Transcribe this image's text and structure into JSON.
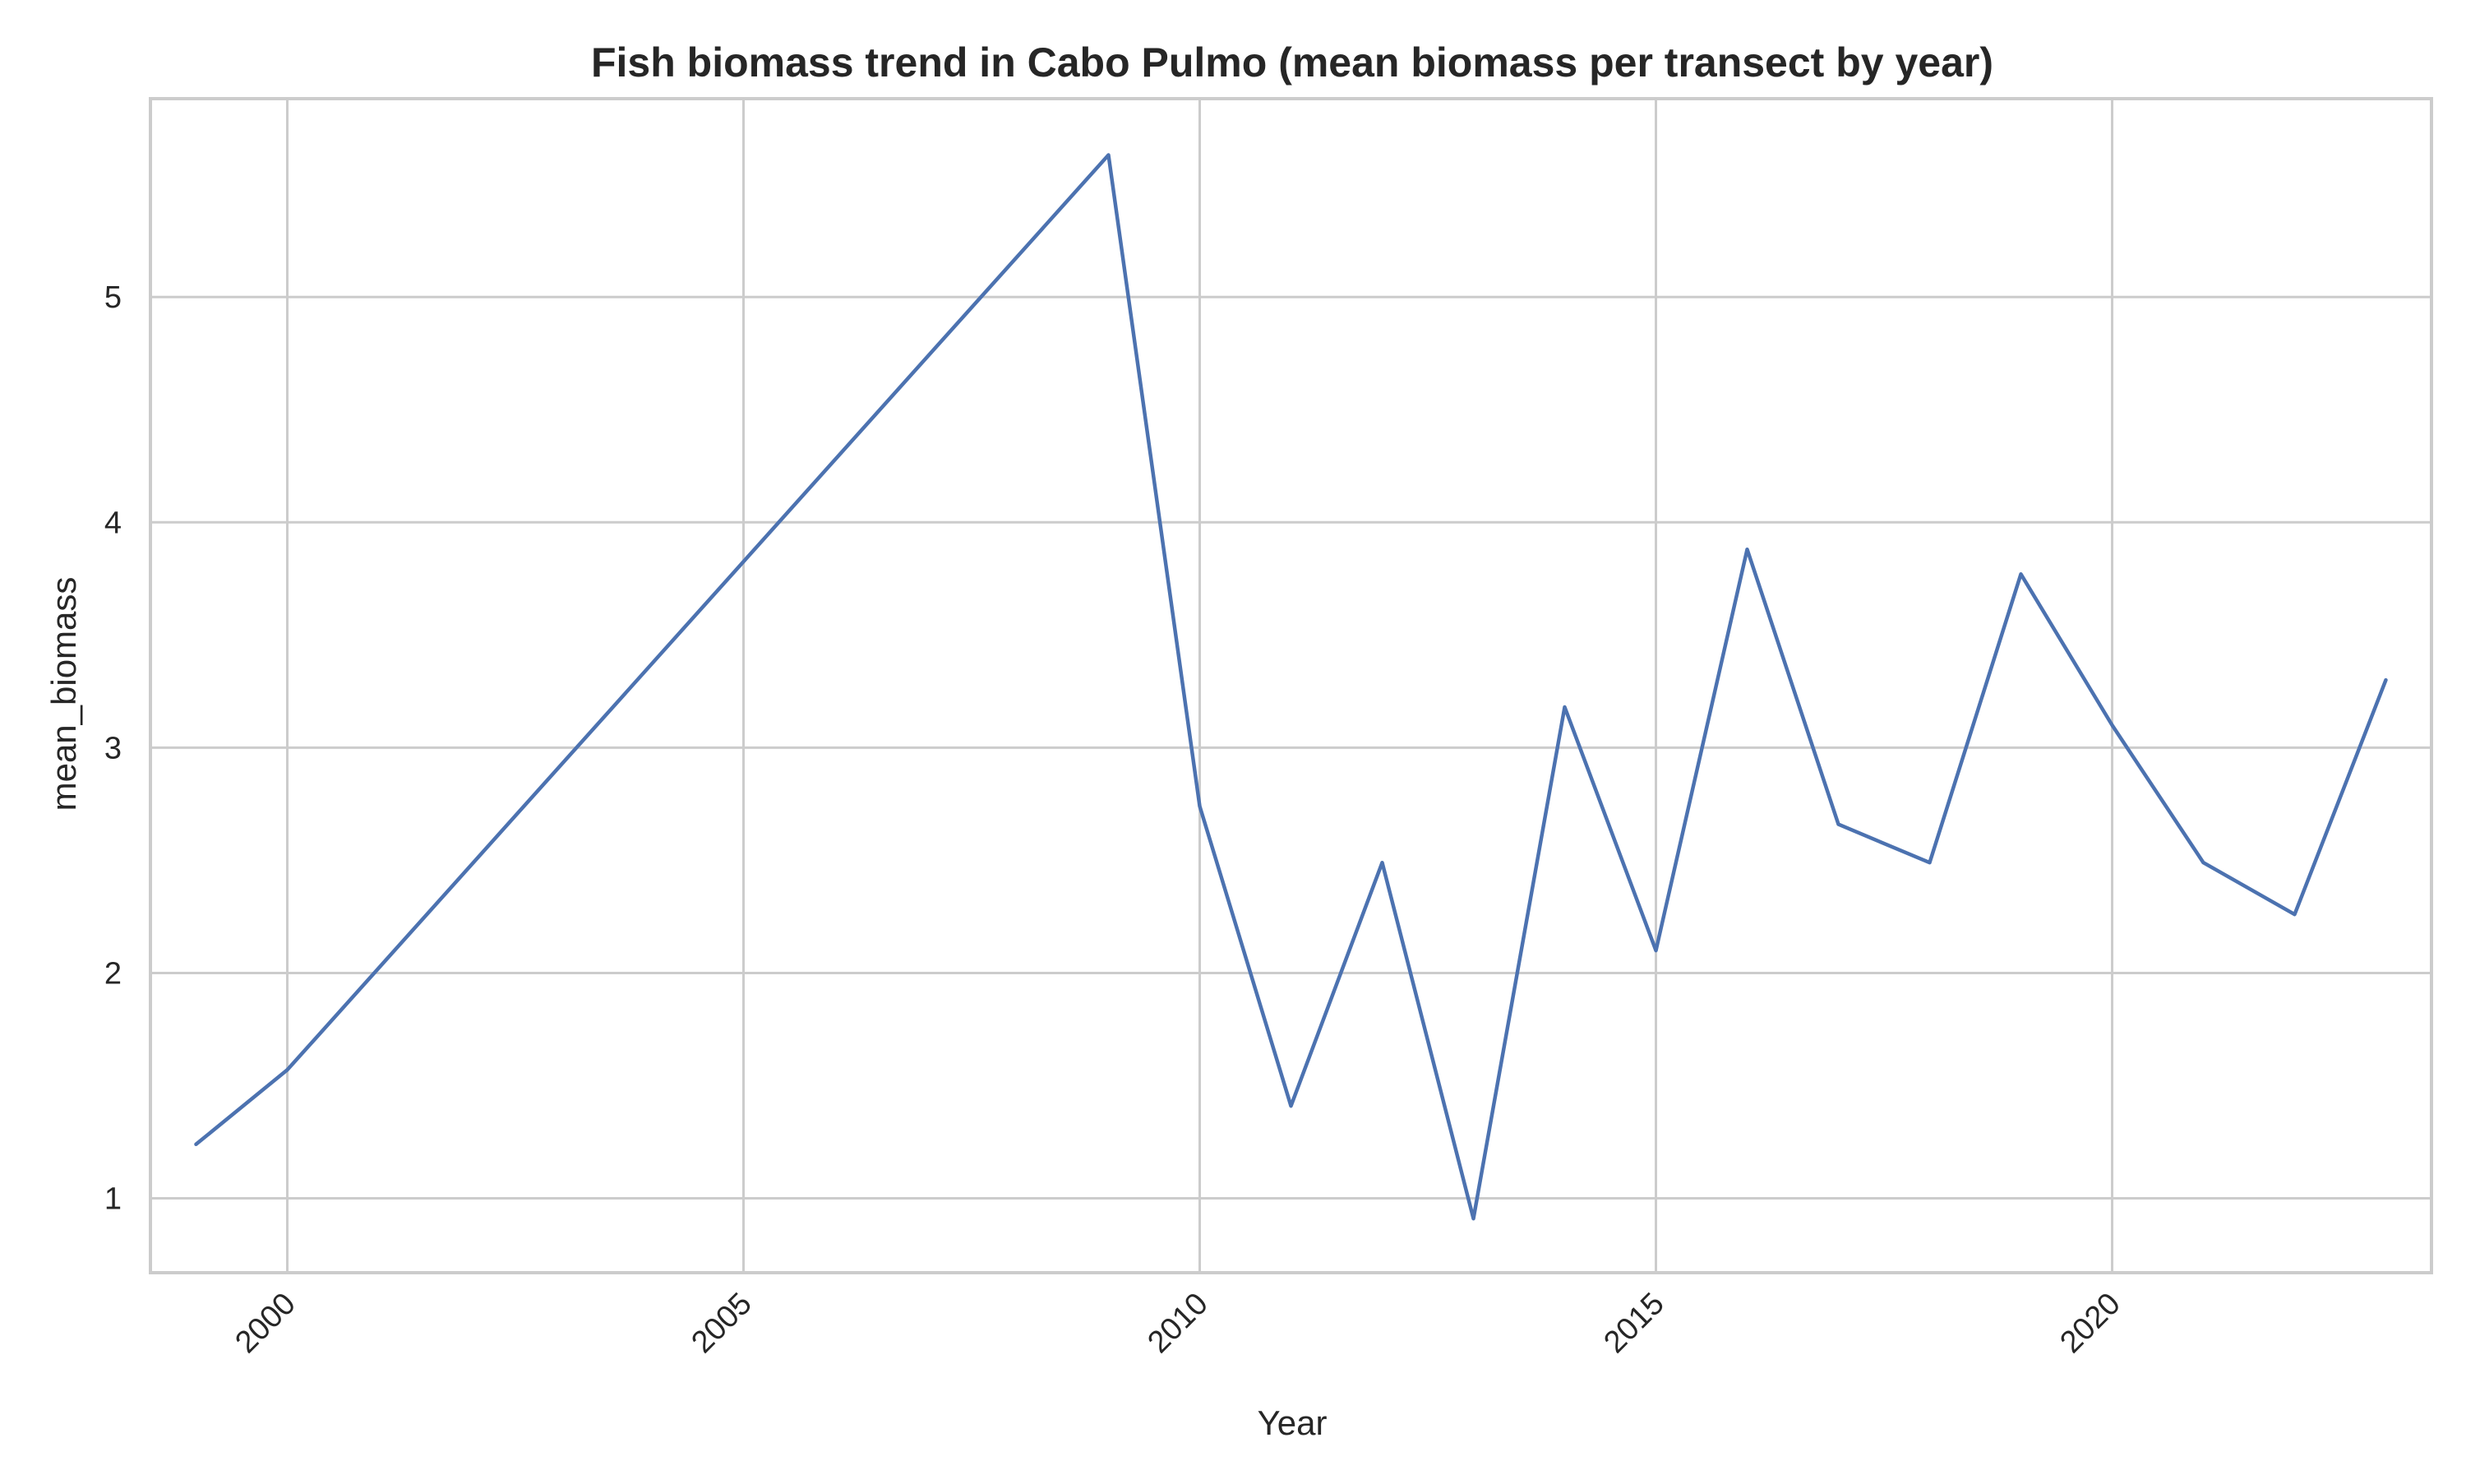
{
  "chart_data": {
    "type": "line",
    "title": "Fish biomass trend in Cabo Pulmo (mean biomass per transect by year)",
    "xlabel": "Year",
    "ylabel": "mean_biomass",
    "xlim": [
      1998.5,
      2023.5
    ],
    "ylim": [
      0.67,
      5.88
    ],
    "xticks": [
      2000,
      2005,
      2010,
      2015,
      2020
    ],
    "yticks": [
      1,
      2,
      3,
      4,
      5
    ],
    "grid": true,
    "series": [
      {
        "color": "#4c72b0",
        "x": [
          1999,
          2000,
          2009,
          2010,
          2011,
          2012,
          2013,
          2014,
          2015,
          2016,
          2017,
          2018,
          2019,
          2020,
          2021,
          2022,
          2023
        ],
        "y": [
          1.24,
          1.57,
          5.63,
          2.74,
          1.41,
          2.49,
          0.91,
          3.18,
          2.1,
          3.88,
          2.66,
          2.49,
          3.77,
          3.1,
          2.49,
          2.26,
          3.3
        ]
      }
    ]
  }
}
